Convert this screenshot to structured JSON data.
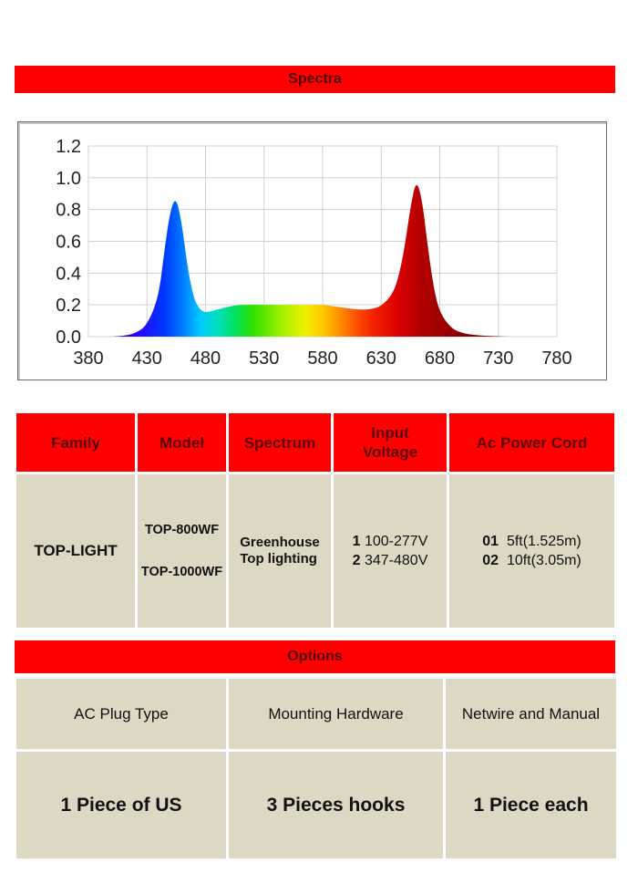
{
  "spectra_title": "Spectra",
  "chart_data": {
    "type": "area",
    "x_ticks": [
      "380",
      "430",
      "480",
      "530",
      "580",
      "630",
      "680",
      "730",
      "780"
    ],
    "y_ticks": [
      "0.0",
      "0.2",
      "0.4",
      "0.6",
      "0.8",
      "1.0",
      "1.2"
    ],
    "xlim": [
      380,
      780
    ],
    "ylim": [
      0,
      1.2
    ],
    "grid": true,
    "series": [
      {
        "x": [
          400,
          410,
          420,
          430,
          440,
          445,
          450,
          455,
          460,
          465,
          470,
          475,
          480,
          490,
          500,
          510,
          520,
          530,
          540,
          550,
          560,
          570,
          580,
          590,
          600,
          610,
          620,
          630,
          640,
          645,
          650,
          655,
          660,
          665,
          670,
          675,
          680,
          690,
          700,
          710,
          720,
          730,
          740
        ],
        "y": [
          0.0,
          0.005,
          0.02,
          0.07,
          0.25,
          0.55,
          0.8,
          0.88,
          0.7,
          0.42,
          0.24,
          0.17,
          0.15,
          0.17,
          0.19,
          0.2,
          0.2,
          0.2,
          0.2,
          0.2,
          0.2,
          0.2,
          0.2,
          0.19,
          0.18,
          0.17,
          0.17,
          0.19,
          0.27,
          0.38,
          0.56,
          0.82,
          0.99,
          0.86,
          0.55,
          0.3,
          0.15,
          0.05,
          0.02,
          0.01,
          0.005,
          0.002,
          0.0
        ]
      }
    ]
  },
  "spec_table": {
    "headers": [
      "Family",
      "Model",
      "Spectrum",
      "Input\nVoltage",
      "Ac Power Cord"
    ],
    "family": "TOP-LIGHT",
    "models": [
      "TOP-800WF",
      "TOP-1000WF"
    ],
    "spectrum": "Greenhouse\nTop lighting",
    "voltage": [
      {
        "code": "1",
        "value": "100-277V"
      },
      {
        "code": "2",
        "value": "347-480V"
      }
    ],
    "power_cord": [
      {
        "code": "01",
        "value": "5ft(1.525m)"
      },
      {
        "code": "02",
        "value": "10ft(3.05m)"
      }
    ]
  },
  "options_title": "Options",
  "options": [
    {
      "label": "AC Plug Type",
      "value": "1 Piece of US"
    },
    {
      "label": "Mounting Hardware",
      "value": "3 Pieces hooks"
    },
    {
      "label": "Netwire and Manual",
      "value": "1 Piece each"
    }
  ]
}
